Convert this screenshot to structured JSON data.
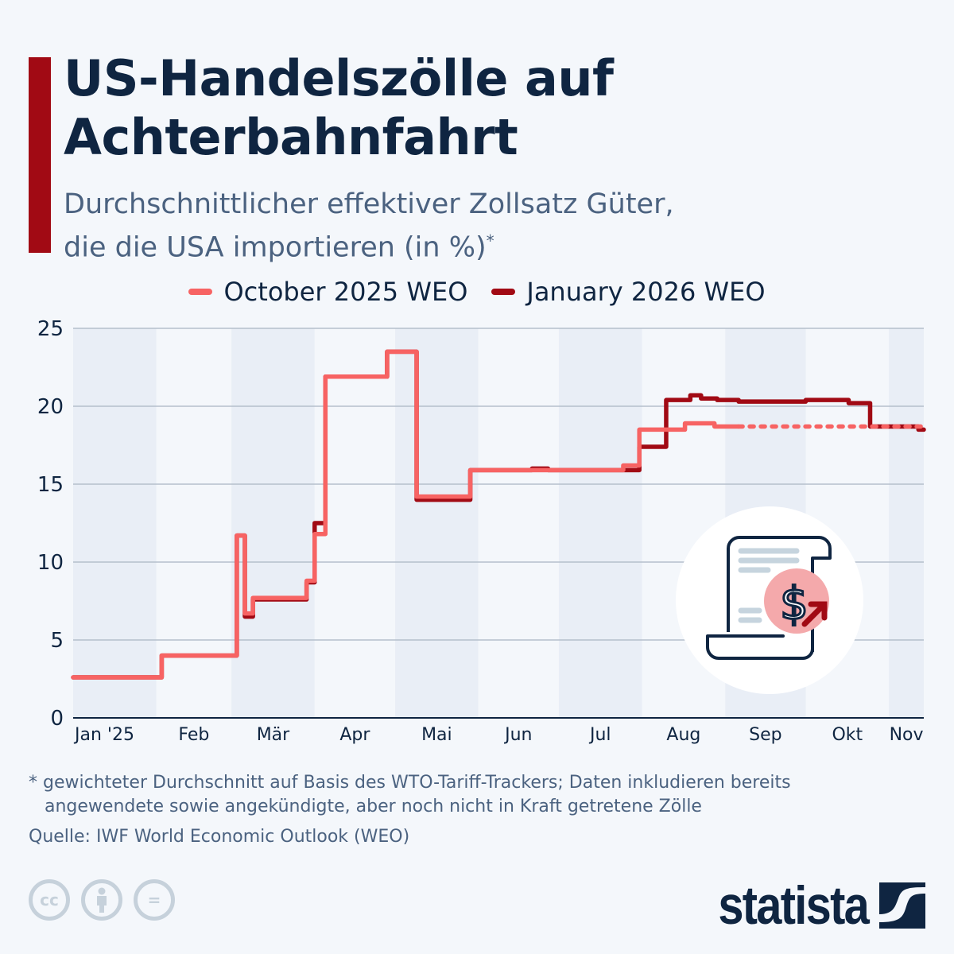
{
  "header": {
    "title_line1": "US-Handelszölle auf",
    "title_line2": "Achterbahnfahrt",
    "subtitle_line1": "Durchschnittlicher effektiver Zollsatz Güter,",
    "subtitle_line2": "die die USA importieren (in %)",
    "subtitle_mark": "*"
  },
  "colors": {
    "accent": "#a10a14",
    "october": "#f76363",
    "january": "#a10a14",
    "text": "#0f2541",
    "band": "#e9eef6"
  },
  "chart_data": {
    "type": "line",
    "step": true,
    "xlabel": "",
    "ylabel": "",
    "ylim": [
      0,
      25
    ],
    "xlim": [
      "2025-01-01",
      "2025-11-14"
    ],
    "yticks": [
      0,
      5,
      10,
      15,
      20,
      25
    ],
    "xticks": [
      {
        "label": "Jan '25",
        "month": "2025-01"
      },
      {
        "label": "Feb",
        "month": "2025-02"
      },
      {
        "label": "Mär",
        "month": "2025-03"
      },
      {
        "label": "Apr",
        "month": "2025-04"
      },
      {
        "label": "Mai",
        "month": "2025-05"
      },
      {
        "label": "Jun",
        "month": "2025-06"
      },
      {
        "label": "Jul",
        "month": "2025-07"
      },
      {
        "label": "Aug",
        "month": "2025-08"
      },
      {
        "label": "Sep",
        "month": "2025-09"
      },
      {
        "label": "Okt",
        "month": "2025-10"
      },
      {
        "label": "Nov",
        "month": "2025-11"
      }
    ],
    "grid": true,
    "legend_position": "top",
    "series": [
      {
        "name": "October 2025 WEO",
        "color": "#f76363",
        "dotted_from": "2025-09-06",
        "end": "2025-11-14",
        "points": [
          [
            "2025-01-01",
            2.6
          ],
          [
            "2025-02-03",
            4.0
          ],
          [
            "2025-03-03",
            11.7
          ],
          [
            "2025-03-06",
            6.7
          ],
          [
            "2025-03-09",
            7.7
          ],
          [
            "2025-03-29",
            8.8
          ],
          [
            "2025-04-01",
            11.8
          ],
          [
            "2025-04-05",
            21.9
          ],
          [
            "2025-04-28",
            23.5
          ],
          [
            "2025-05-09",
            14.2
          ],
          [
            "2025-05-29",
            15.9
          ],
          [
            "2025-07-25",
            16.2
          ],
          [
            "2025-07-31",
            18.5
          ],
          [
            "2025-08-17",
            18.9
          ],
          [
            "2025-08-28",
            18.7
          ]
        ]
      },
      {
        "name": "January 2026 WEO",
        "color": "#a10a14",
        "end": "2025-11-14",
        "points": [
          [
            "2025-01-01",
            2.6
          ],
          [
            "2025-02-03",
            4.0
          ],
          [
            "2025-03-03",
            11.7
          ],
          [
            "2025-03-06",
            6.5
          ],
          [
            "2025-03-09",
            7.6
          ],
          [
            "2025-03-29",
            8.7
          ],
          [
            "2025-04-01",
            12.5
          ],
          [
            "2025-04-05",
            21.9
          ],
          [
            "2025-04-28",
            23.5
          ],
          [
            "2025-05-09",
            14.0
          ],
          [
            "2025-05-29",
            15.9
          ],
          [
            "2025-06-21",
            16.0
          ],
          [
            "2025-06-27",
            15.9
          ],
          [
            "2025-07-31",
            17.4
          ],
          [
            "2025-08-10",
            20.4
          ],
          [
            "2025-08-19",
            20.7
          ],
          [
            "2025-08-23",
            20.5
          ],
          [
            "2025-08-29",
            20.4
          ],
          [
            "2025-09-06",
            20.3
          ],
          [
            "2025-10-01",
            20.4
          ],
          [
            "2025-10-17",
            20.2
          ],
          [
            "2025-10-25",
            18.7
          ],
          [
            "2025-11-12",
            18.5
          ]
        ]
      }
    ]
  },
  "footer": {
    "footnote_line1": "* gewichteter Durchschnitt auf Basis des WTO-Tariff-Trackers; Daten inkludieren bereits",
    "footnote_line2": "angewendete sowie angekündigte, aber noch nicht in Kraft getretene Zölle",
    "source": "Quelle: IWF World Economic Outlook (WEO)",
    "license_icons": [
      "cc-icon",
      "attribution-icon",
      "no-derivatives-icon"
    ],
    "cc_label": "cc",
    "nd_label": "=",
    "logo": "statista"
  }
}
